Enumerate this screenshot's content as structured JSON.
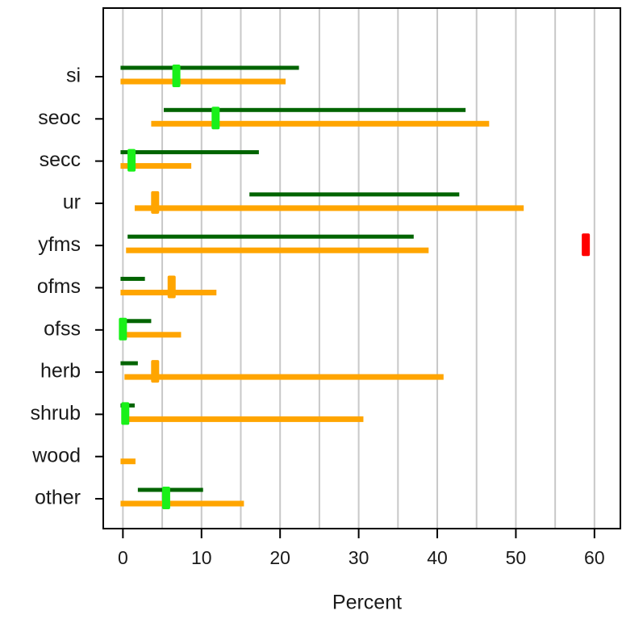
{
  "chart_data": {
    "type": "range",
    "xlabel": "Percent",
    "categories": [
      "si",
      "seoc",
      "secc",
      "ur",
      "yfms",
      "ofms",
      "ofss",
      "herb",
      "shrub",
      "wood",
      "other"
    ],
    "series": [
      {
        "color": "#006400",
        "low": [
          -0.3,
          5.2,
          -0.3,
          16.1,
          0.6,
          -0.3,
          -0.3,
          -0.3,
          -0.3,
          null,
          1.9
        ],
        "high": [
          22.4,
          43.6,
          17.3,
          42.8,
          37.0,
          2.8,
          3.6,
          1.9,
          1.5,
          null,
          10.2
        ]
      },
      {
        "color": "#ffa500",
        "low": [
          -0.3,
          3.6,
          -0.3,
          1.5,
          0.4,
          -0.3,
          -0.3,
          0.2,
          0.2,
          -0.3,
          -0.3
        ],
        "high": [
          20.7,
          46.6,
          8.7,
          51.0,
          38.9,
          11.9,
          7.4,
          40.8,
          30.6,
          1.6,
          15.4
        ]
      }
    ],
    "markers": {
      "values": [
        6.8,
        11.8,
        1.1,
        4.1,
        58.9,
        6.2,
        0,
        4.1,
        0.3,
        null,
        5.5
      ],
      "colors": [
        "#19f019",
        "#19f019",
        "#19f019",
        "#ffa500",
        "#ff0000",
        "#ffa500",
        "#19f019",
        "#ffa500",
        "#19f019",
        null,
        "#19f019"
      ]
    },
    "xlim": [
      -2.5,
      63.3
    ],
    "xticks": [
      0,
      10,
      20,
      30,
      40,
      50,
      60
    ],
    "xgrid": [
      0,
      5,
      10,
      15,
      20,
      25,
      30,
      35,
      40,
      45,
      50,
      55,
      60
    ],
    "grid": true
  }
}
